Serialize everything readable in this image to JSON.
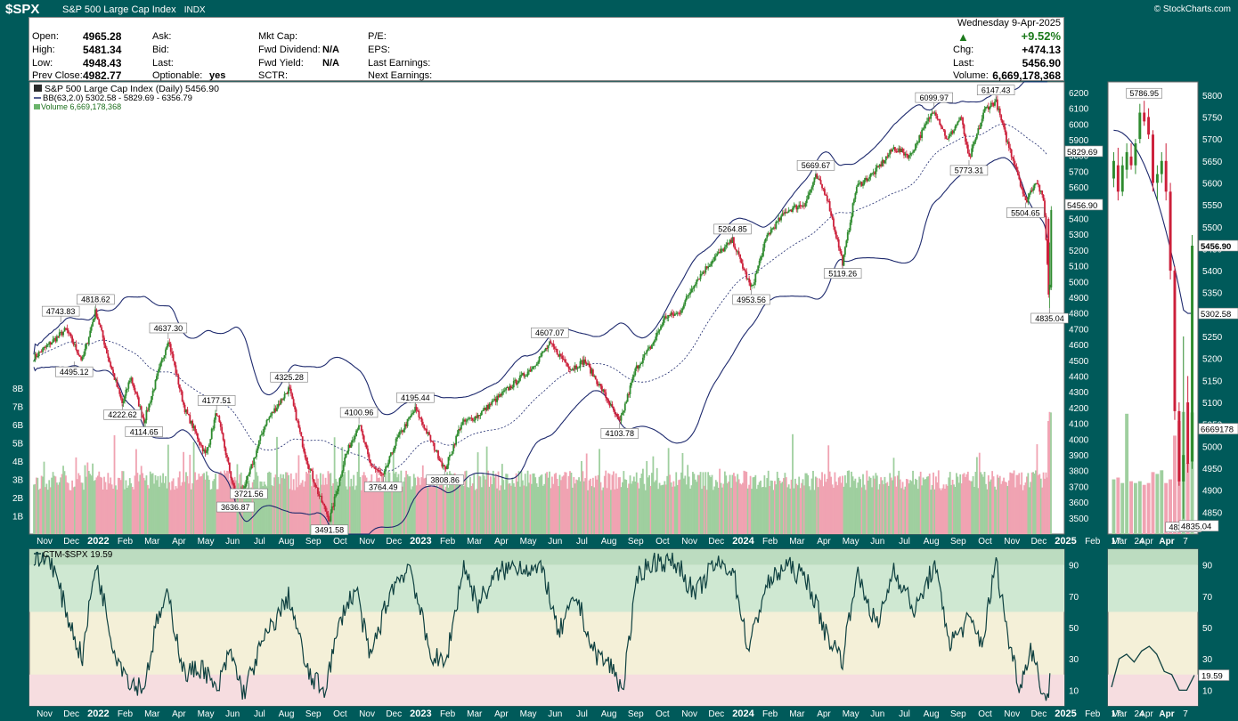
{
  "header": {
    "ticker": "$SPX",
    "name": "S&P 500 Large Cap Index",
    "exchange": "INDX",
    "copyright": "© StockCharts.com"
  },
  "quote": {
    "open_label": "Open:",
    "open": "4965.28",
    "high_label": "High:",
    "high": "5481.34",
    "low_label": "Low:",
    "low": "4948.43",
    "prev_close_label": "Prev Close:",
    "prev_close": "4982.77",
    "ask_label": "Ask:",
    "bid_label": "Bid:",
    "last_label": "Last:",
    "optionable_label": "Optionable:",
    "optionable": "yes",
    "mkt_cap_label": "Mkt Cap:",
    "fwd_div_label": "Fwd Dividend:",
    "fwd_div": "N/A",
    "fwd_yield_label": "Fwd Yield:",
    "fwd_yield": "N/A",
    "sctr_label": "SCTR:",
    "pe_label": "P/E:",
    "eps_label": "EPS:",
    "last_earnings_label": "Last Earnings:",
    "next_earnings_label": "Next Earnings:",
    "date": "Wednesday  9-Apr-2025",
    "pct_change": "+9.52%",
    "chg_label": "Chg:",
    "chg": "+474.13",
    "last_price_label": "Last:",
    "last_price": "5456.90",
    "volume_label": "Volume:",
    "volume": "6,669,178,368"
  },
  "legend": {
    "price": "S&P 500 Large Cap Index (Daily) 5456.90",
    "bb": "BB(63,2.0) 5302.58 - 5829.69 - 6356.79",
    "volume": "Volume 6,669,178,368",
    "ctm": "CTM-$SPX 19.59"
  },
  "colors": {
    "up": "#2e8b2e",
    "down": "#cc1f3a",
    "bb": "#1e2a6e",
    "ctm_line": "#0e4040",
    "band_green": "#cfe8d2",
    "band_green_dark": "#bcdcc0",
    "band_yellow": "#f4f0d8",
    "band_red": "#f6dde0"
  },
  "chart_data": [
    {
      "type": "line",
      "title": "S&P 500 Large Cap Index (Daily)",
      "price_axis_ticks": [
        "3500",
        "3600",
        "3700",
        "3800",
        "3900",
        "4000",
        "4100",
        "4200",
        "4300",
        "4400",
        "4500",
        "4600",
        "4700",
        "4800",
        "4900",
        "5000",
        "5100",
        "5200",
        "5300",
        "5400",
        "5500",
        "5600",
        "5700",
        "5800",
        "5900",
        "6000",
        "6100",
        "6200"
      ],
      "volume_axis_ticks": [
        "1B",
        "2B",
        "3B",
        "4B",
        "5B",
        "6B",
        "7B",
        "8B"
      ],
      "x_axis_labels": [
        "Nov",
        "Dec",
        "2022",
        "Feb",
        "Mar",
        "Apr",
        "May",
        "Jun",
        "Jul",
        "Aug",
        "Sep",
        "Oct",
        "Nov",
        "Dec",
        "2023",
        "Feb",
        "Mar",
        "Apr",
        "May",
        "Jun",
        "Jul",
        "Aug",
        "Sep",
        "Oct",
        "Nov",
        "Dec",
        "2024",
        "Feb",
        "Mar",
        "Apr",
        "May",
        "Jun",
        "Jul",
        "Aug",
        "Sep",
        "Oct",
        "Nov",
        "Dec",
        "2025",
        "Feb",
        "Mar",
        "Apr"
      ],
      "ylim": [
        3400,
        6270
      ],
      "price_points": [
        {
          "m": 0,
          "v": 4520
        },
        {
          "m": 1.2,
          "v": 4700
        },
        {
          "m": 1.8,
          "v": 4500
        },
        {
          "m": 2.3,
          "v": 4818.62
        },
        {
          "m": 2.8,
          "v": 4500
        },
        {
          "m": 3.3,
          "v": 4222.62
        },
        {
          "m": 3.6,
          "v": 4400
        },
        {
          "m": 4.1,
          "v": 4114.65
        },
        {
          "m": 5.0,
          "v": 4637.3
        },
        {
          "m": 5.6,
          "v": 4200
        },
        {
          "m": 6.4,
          "v": 3900
        },
        {
          "m": 6.8,
          "v": 4177.51
        },
        {
          "m": 7.5,
          "v": 3636.87
        },
        {
          "m": 7.9,
          "v": 3721.56
        },
        {
          "m": 8.6,
          "v": 4100
        },
        {
          "m": 9.5,
          "v": 4325.28
        },
        {
          "m": 10.1,
          "v": 3900
        },
        {
          "m": 10.6,
          "v": 3650
        },
        {
          "m": 11.0,
          "v": 3491.58
        },
        {
          "m": 11.6,
          "v": 3900
        },
        {
          "m": 12.1,
          "v": 4100.96
        },
        {
          "m": 12.5,
          "v": 3850
        },
        {
          "m": 13.0,
          "v": 3764.49
        },
        {
          "m": 13.5,
          "v": 4000
        },
        {
          "m": 14.2,
          "v": 4195.44
        },
        {
          "m": 14.9,
          "v": 3950
        },
        {
          "m": 15.3,
          "v": 3808.86
        },
        {
          "m": 15.9,
          "v": 4100
        },
        {
          "m": 16.5,
          "v": 4150
        },
        {
          "m": 17.5,
          "v": 4300
        },
        {
          "m": 18.5,
          "v": 4450
        },
        {
          "m": 19.2,
          "v": 4607.07
        },
        {
          "m": 20.0,
          "v": 4450
        },
        {
          "m": 20.5,
          "v": 4500
        },
        {
          "m": 21.2,
          "v": 4300
        },
        {
          "m": 21.8,
          "v": 4103.78
        },
        {
          "m": 22.4,
          "v": 4450
        },
        {
          "m": 23.0,
          "v": 4600
        },
        {
          "m": 23.5,
          "v": 4780
        },
        {
          "m": 24.0,
          "v": 4800
        },
        {
          "m": 24.6,
          "v": 5000
        },
        {
          "m": 25.3,
          "v": 5150
        },
        {
          "m": 26.0,
          "v": 5264.85
        },
        {
          "m": 26.7,
          "v": 4953.56
        },
        {
          "m": 27.3,
          "v": 5300
        },
        {
          "m": 28.0,
          "v": 5450
        },
        {
          "m": 28.7,
          "v": 5500
        },
        {
          "m": 29.1,
          "v": 5669.67
        },
        {
          "m": 29.5,
          "v": 5550
        },
        {
          "m": 30.1,
          "v": 5119.26
        },
        {
          "m": 30.6,
          "v": 5600
        },
        {
          "m": 31.3,
          "v": 5700
        },
        {
          "m": 32.0,
          "v": 5850
        },
        {
          "m": 32.6,
          "v": 5800
        },
        {
          "m": 33.2,
          "v": 6000
        },
        {
          "m": 33.5,
          "v": 6099.97
        },
        {
          "m": 34.0,
          "v": 5900
        },
        {
          "m": 34.5,
          "v": 6050
        },
        {
          "m": 34.8,
          "v": 5773.31
        },
        {
          "m": 35.4,
          "v": 6100
        },
        {
          "m": 35.8,
          "v": 6147.43
        },
        {
          "m": 36.2,
          "v": 5900
        },
        {
          "m": 36.6,
          "v": 5700
        },
        {
          "m": 36.9,
          "v": 5504.65
        },
        {
          "m": 37.3,
          "v": 5650
        },
        {
          "m": 37.6,
          "v": 5500
        },
        {
          "m": 37.75,
          "v": 4982.77
        },
        {
          "m": 37.8,
          "v": 4835.04
        },
        {
          "m": 37.85,
          "v": 5456.9
        }
      ],
      "annotations": [
        {
          "text": "4743.83",
          "m": 1.0,
          "v": 4743.83,
          "pos": "above"
        },
        {
          "text": "4818.62",
          "m": 2.3,
          "v": 4818.62,
          "pos": "above"
        },
        {
          "text": "4495.12",
          "m": 1.5,
          "v": 4495.12,
          "pos": "below"
        },
        {
          "text": "4222.62",
          "m": 3.3,
          "v": 4222.62,
          "pos": "below"
        },
        {
          "text": "4114.65",
          "m": 4.1,
          "v": 4114.65,
          "pos": "below"
        },
        {
          "text": "4637.30",
          "m": 5.0,
          "v": 4637.3,
          "pos": "above"
        },
        {
          "text": "4177.51",
          "m": 6.8,
          "v": 4177.51,
          "pos": "above"
        },
        {
          "text": "3636.87",
          "m": 7.5,
          "v": 3636.87,
          "pos": "below"
        },
        {
          "text": "3721.56",
          "m": 8.0,
          "v": 3721.56,
          "pos": "below"
        },
        {
          "text": "4325.28",
          "m": 9.5,
          "v": 4325.28,
          "pos": "above"
        },
        {
          "text": "3491.58",
          "m": 11.0,
          "v": 3491.58,
          "pos": "below"
        },
        {
          "text": "4100.96",
          "m": 12.1,
          "v": 4100.96,
          "pos": "above"
        },
        {
          "text": "3764.49",
          "m": 13.0,
          "v": 3764.49,
          "pos": "below"
        },
        {
          "text": "4195.44",
          "m": 14.2,
          "v": 4195.44,
          "pos": "above"
        },
        {
          "text": "3808.86",
          "m": 15.3,
          "v": 3808.86,
          "pos": "below"
        },
        {
          "text": "4607.07",
          "m": 19.2,
          "v": 4607.07,
          "pos": "above"
        },
        {
          "text": "4103.78",
          "m": 21.8,
          "v": 4103.78,
          "pos": "below"
        },
        {
          "text": "5264.85",
          "m": 26.0,
          "v": 5264.85,
          "pos": "above"
        },
        {
          "text": "4953.56",
          "m": 26.7,
          "v": 4953.56,
          "pos": "below"
        },
        {
          "text": "5669.67",
          "m": 29.1,
          "v": 5669.67,
          "pos": "above"
        },
        {
          "text": "5119.26",
          "m": 30.1,
          "v": 5119.26,
          "pos": "below"
        },
        {
          "text": "6099.97",
          "m": 33.5,
          "v": 6099.97,
          "pos": "above"
        },
        {
          "text": "5773.31",
          "m": 34.8,
          "v": 5773.31,
          "pos": "below"
        },
        {
          "text": "6147.43",
          "m": 35.8,
          "v": 6147.43,
          "pos": "above"
        },
        {
          "text": "5504.65",
          "m": 36.9,
          "v": 5504.65,
          "pos": "below"
        },
        {
          "text": "4835.04",
          "m": 37.8,
          "v": 4835.04,
          "pos": "below"
        }
      ],
      "price_right_labels": [
        "5829.69",
        "5456.90",
        "4835.04"
      ]
    },
    {
      "type": "line",
      "title": "CTM-$SPX",
      "ylim": [
        0,
        100
      ],
      "y_ticks": [
        "10",
        "30",
        "50",
        "70",
        "90"
      ],
      "points": [
        {
          "m": 0,
          "v": 92
        },
        {
          "m": 0.6,
          "v": 95
        },
        {
          "m": 1.3,
          "v": 55
        },
        {
          "m": 1.8,
          "v": 30
        },
        {
          "m": 2.3,
          "v": 92
        },
        {
          "m": 3.0,
          "v": 35
        },
        {
          "m": 3.6,
          "v": 15
        },
        {
          "m": 4.1,
          "v": 12
        },
        {
          "m": 4.6,
          "v": 55
        },
        {
          "m": 5.0,
          "v": 70
        },
        {
          "m": 5.6,
          "v": 20
        },
        {
          "m": 6.3,
          "v": 25
        },
        {
          "m": 6.8,
          "v": 8
        },
        {
          "m": 7.3,
          "v": 35
        },
        {
          "m": 7.8,
          "v": 8
        },
        {
          "m": 8.5,
          "v": 40
        },
        {
          "m": 9.5,
          "v": 70
        },
        {
          "m": 10.2,
          "v": 20
        },
        {
          "m": 10.8,
          "v": 10
        },
        {
          "m": 11.5,
          "v": 60
        },
        {
          "m": 12.0,
          "v": 75
        },
        {
          "m": 12.5,
          "v": 30
        },
        {
          "m": 13.3,
          "v": 75
        },
        {
          "m": 14.0,
          "v": 90
        },
        {
          "m": 14.7,
          "v": 35
        },
        {
          "m": 15.3,
          "v": 25
        },
        {
          "m": 16.0,
          "v": 90
        },
        {
          "m": 16.5,
          "v": 65
        },
        {
          "m": 17.3,
          "v": 85
        },
        {
          "m": 18.0,
          "v": 90
        },
        {
          "m": 19.0,
          "v": 85
        },
        {
          "m": 19.5,
          "v": 45
        },
        {
          "m": 20.2,
          "v": 70
        },
        {
          "m": 20.8,
          "v": 35
        },
        {
          "m": 21.5,
          "v": 25
        },
        {
          "m": 21.9,
          "v": 10
        },
        {
          "m": 22.5,
          "v": 85
        },
        {
          "m": 23.2,
          "v": 93
        },
        {
          "m": 24.0,
          "v": 90
        },
        {
          "m": 24.6,
          "v": 70
        },
        {
          "m": 25.3,
          "v": 90
        },
        {
          "m": 26.0,
          "v": 88
        },
        {
          "m": 26.6,
          "v": 35
        },
        {
          "m": 27.2,
          "v": 75
        },
        {
          "m": 28.0,
          "v": 90
        },
        {
          "m": 28.8,
          "v": 80
        },
        {
          "m": 29.5,
          "v": 45
        },
        {
          "m": 30.1,
          "v": 30
        },
        {
          "m": 30.6,
          "v": 85
        },
        {
          "m": 31.4,
          "v": 50
        },
        {
          "m": 32.0,
          "v": 88
        },
        {
          "m": 32.8,
          "v": 60
        },
        {
          "m": 33.5,
          "v": 90
        },
        {
          "m": 34.1,
          "v": 40
        },
        {
          "m": 34.8,
          "v": 55
        },
        {
          "m": 35.3,
          "v": 40
        },
        {
          "m": 35.8,
          "v": 92
        },
        {
          "m": 36.3,
          "v": 40
        },
        {
          "m": 36.7,
          "v": 12
        },
        {
          "m": 37.1,
          "v": 38
        },
        {
          "m": 37.5,
          "v": 12
        },
        {
          "m": 37.7,
          "v": 3
        },
        {
          "m": 37.85,
          "v": 19.59
        }
      ]
    },
    {
      "type": "bar",
      "title": "Recent detail",
      "x_axis_labels": [
        "17",
        "24",
        "Apr",
        "7"
      ],
      "price_ticks": [
        "4850",
        "4900",
        "4950",
        "5000",
        "5050",
        "5100",
        "5150",
        "5200",
        "5250",
        "5300",
        "5350",
        "5400",
        "5450",
        "5500",
        "5550",
        "5600",
        "5650",
        "5700",
        "5750",
        "5800"
      ],
      "price_right_labels": [
        "5456.90",
        "5302.58",
        "6669178",
        "4835.04"
      ],
      "ylim": [
        4800,
        5830
      ],
      "annotations": [
        {
          "text": "5786.95",
          "v": 5786.95
        },
        {
          "text": "4835.04",
          "v": 4835.04
        }
      ],
      "candles": [
        {
          "o": 5610,
          "h": 5670,
          "l": 5590,
          "c": 5650,
          "vol": 3.0
        },
        {
          "o": 5640,
          "h": 5680,
          "l": 5560,
          "c": 5580,
          "vol": 3.1
        },
        {
          "o": 5580,
          "h": 5660,
          "l": 5570,
          "c": 5640,
          "vol": 2.8
        },
        {
          "o": 5630,
          "h": 5690,
          "l": 5610,
          "c": 5670,
          "vol": 6.6
        },
        {
          "o": 5660,
          "h": 5690,
          "l": 5630,
          "c": 5640,
          "vol": 2.9
        },
        {
          "o": 5640,
          "h": 5700,
          "l": 5620,
          "c": 5690,
          "vol": 2.8
        },
        {
          "o": 5700,
          "h": 5780,
          "l": 5690,
          "c": 5760,
          "vol": 2.9
        },
        {
          "o": 5760,
          "h": 5786.95,
          "l": 5730,
          "c": 5740,
          "vol": 2.7
        },
        {
          "o": 5750,
          "h": 5770,
          "l": 5700,
          "c": 5710,
          "vol": 2.8
        },
        {
          "o": 5710,
          "h": 5720,
          "l": 5580,
          "c": 5600,
          "vol": 3.4
        },
        {
          "o": 5600,
          "h": 5640,
          "l": 5560,
          "c": 5620,
          "vol": 3.3
        },
        {
          "o": 5620,
          "h": 5670,
          "l": 5600,
          "c": 5650,
          "vol": 3.5
        },
        {
          "o": 5650,
          "h": 5690,
          "l": 5560,
          "c": 5580,
          "vol": 2.8
        },
        {
          "o": 5580,
          "h": 5600,
          "l": 5380,
          "c": 5400,
          "vol": 3.0
        },
        {
          "o": 5400,
          "h": 5410,
          "l": 5060,
          "c": 5080,
          "vol": 5.4
        },
        {
          "o": 5080,
          "h": 5100,
          "l": 4910,
          "c": 4920,
          "vol": 6.2
        },
        {
          "o": 4920,
          "h": 5250,
          "l": 4835.04,
          "c": 4980,
          "vol": 6.7
        },
        {
          "o": 5100,
          "h": 5160,
          "l": 4940,
          "c": 4960,
          "vol": 3.9
        },
        {
          "o": 4965.28,
          "h": 5481.34,
          "l": 4948.43,
          "c": 5456.9,
          "vol": 6.67
        }
      ],
      "ctm_points": [
        12,
        30,
        33,
        28,
        35,
        38,
        33,
        22,
        20,
        10,
        10,
        19.59
      ]
    }
  ]
}
